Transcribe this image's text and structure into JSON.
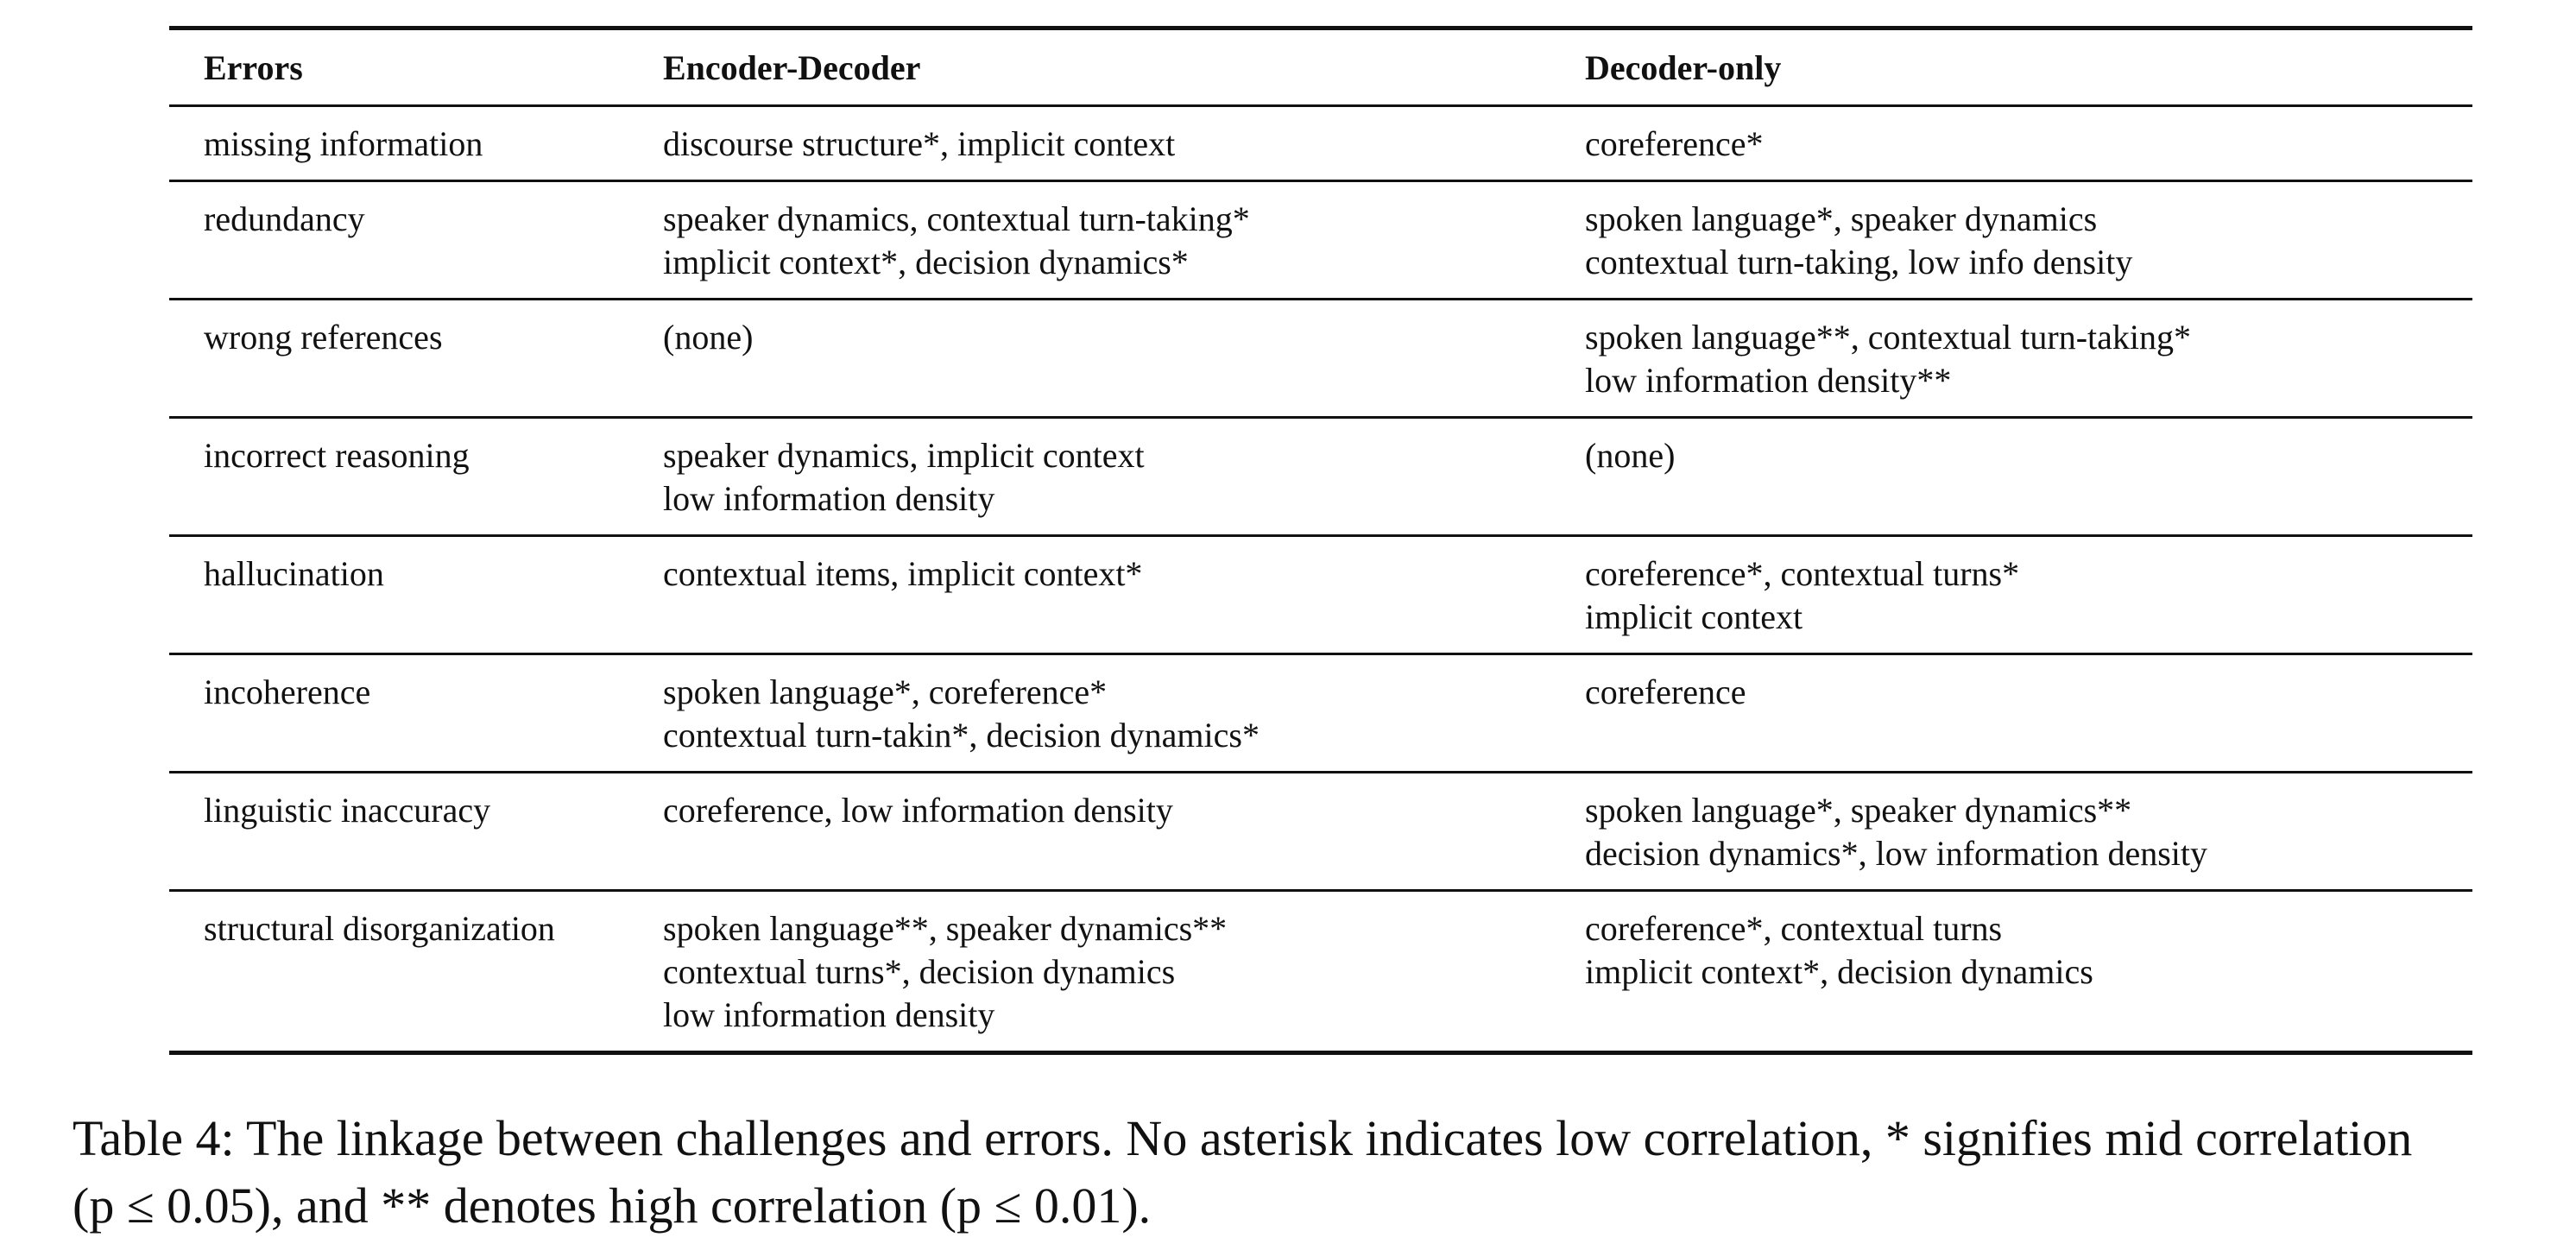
{
  "table": {
    "headers": {
      "errors": "Errors",
      "encoder_decoder": "Encoder-Decoder",
      "decoder_only": "Decoder-only"
    },
    "rows": [
      {
        "error": "missing information",
        "encoder_decoder": [
          "discourse structure*, implicit context"
        ],
        "decoder_only": [
          "coreference*"
        ]
      },
      {
        "error": "redundancy",
        "encoder_decoder": [
          "speaker dynamics, contextual turn-taking*",
          "implicit context*, decision dynamics*"
        ],
        "decoder_only": [
          "spoken language*, speaker dynamics",
          "contextual turn-taking, low info density"
        ]
      },
      {
        "error": "wrong references",
        "encoder_decoder": [
          "(none)"
        ],
        "decoder_only": [
          "spoken language**, contextual turn-taking*",
          "low information density**"
        ]
      },
      {
        "error": "incorrect reasoning",
        "encoder_decoder": [
          "speaker dynamics, implicit context",
          "low information density"
        ],
        "decoder_only": [
          "(none)"
        ]
      },
      {
        "error": "hallucination",
        "encoder_decoder": [
          "contextual items, implicit context*"
        ],
        "decoder_only": [
          "coreference*, contextual turns*",
          "implicit context"
        ]
      },
      {
        "error": "incoherence",
        "encoder_decoder": [
          "spoken language*, coreference*",
          "contextual turn-takin*, decision dynamics*"
        ],
        "decoder_only": [
          "coreference"
        ]
      },
      {
        "error": "linguistic inaccuracy",
        "encoder_decoder": [
          "coreference, low information density"
        ],
        "decoder_only": [
          "spoken language*, speaker dynamics**",
          "decision dynamics*, low information density"
        ]
      },
      {
        "error": "structural disorganization",
        "encoder_decoder": [
          "spoken language**, speaker dynamics**",
          "contextual turns*, decision dynamics",
          "low information density"
        ],
        "decoder_only": [
          "coreference*, contextual turns",
          "implicit context*, decision dynamics"
        ]
      }
    ]
  },
  "caption": {
    "line1": "Table 4: The linkage between challenges and errors. No asterisk indicates low correlation, * signifies mid correlation",
    "line2": "(p ≤ 0.05), and ** denotes high correlation (p ≤ 0.01)."
  }
}
